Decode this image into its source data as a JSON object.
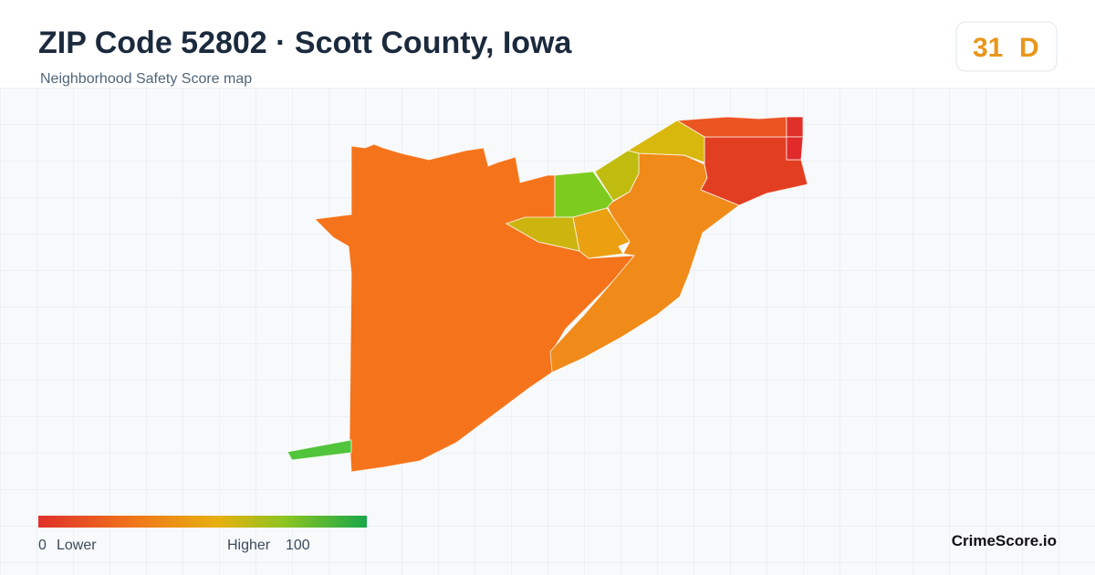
{
  "header": {
    "title": "ZIP Code 52802 · Scott County, Iowa",
    "subtitle": "Neighborhood Safety Score map"
  },
  "badge": {
    "score": 31,
    "grade": "D"
  },
  "legend": {
    "min": 0,
    "low_label": "Lower",
    "high_label": "Higher",
    "max": 100
  },
  "footer": {
    "brand": "CrimeScore.io"
  }
}
